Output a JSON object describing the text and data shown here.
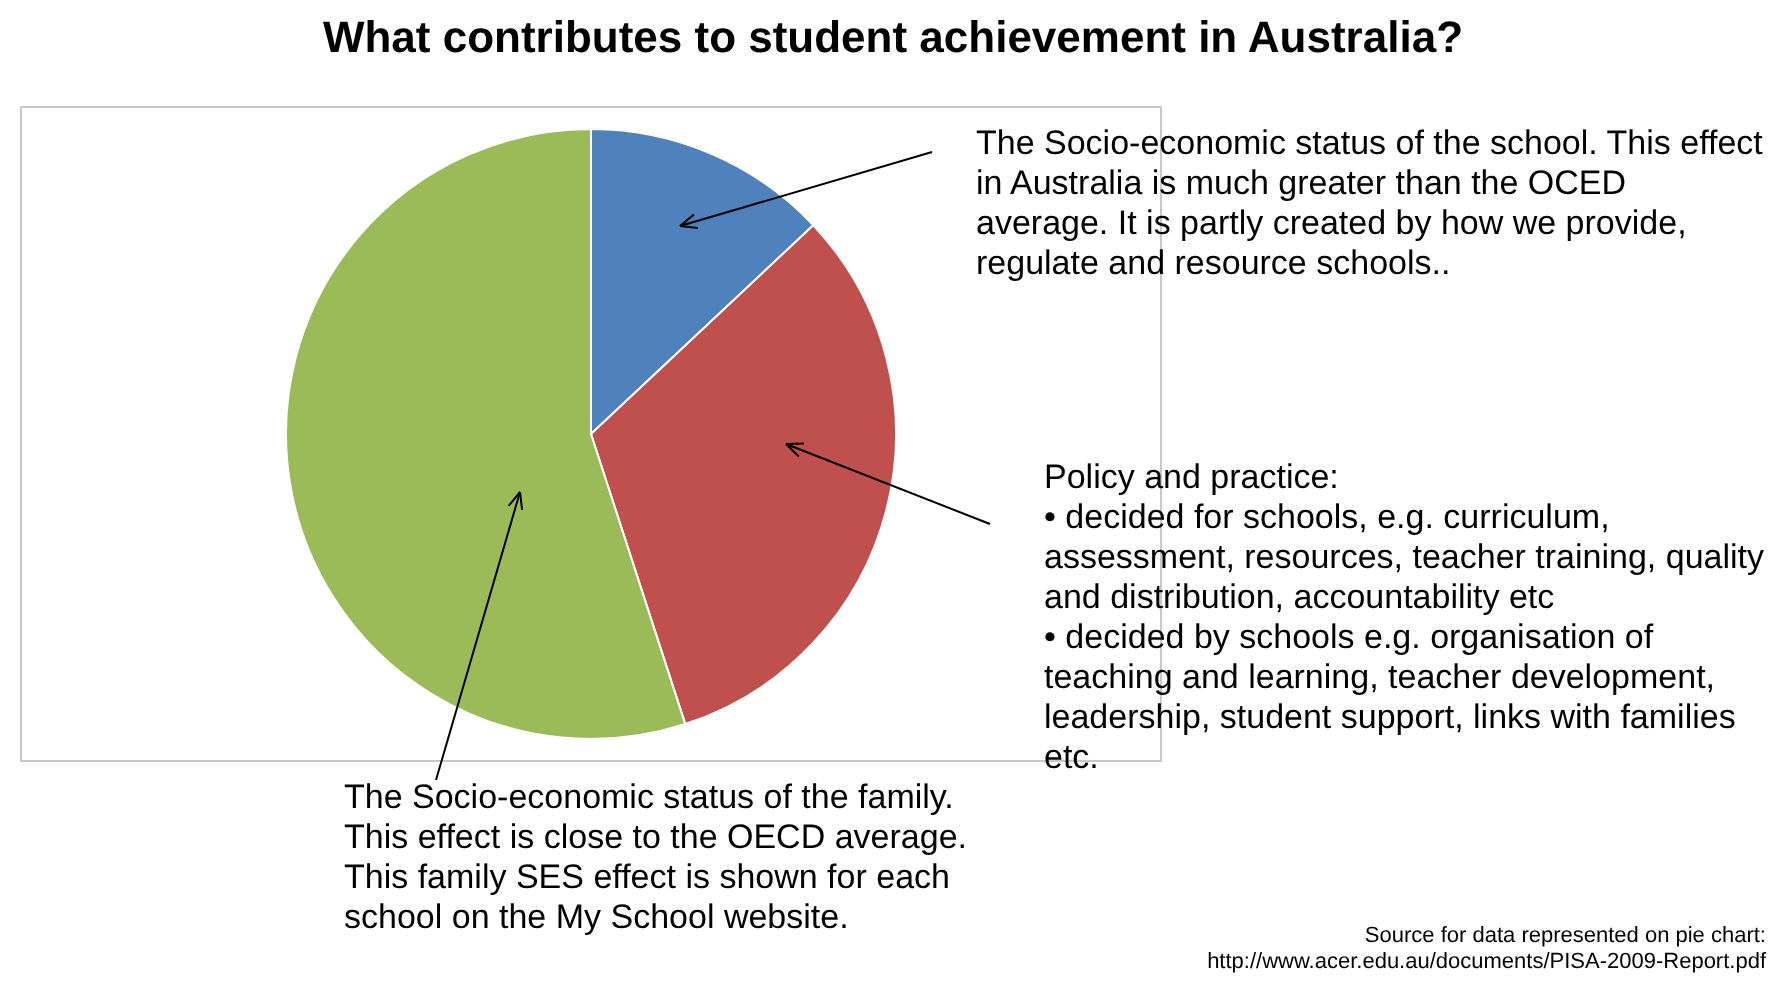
{
  "chart_data": {
    "type": "pie",
    "title": "What contributes to student achievement in Australia?",
    "categories": [
      null,
      null,
      null
    ],
    "values": [
      13,
      32,
      55
    ],
    "colors": [
      "#4f81bd",
      "#c0504d",
      "#9bbb59"
    ],
    "legend": false,
    "annotations": [
      "The Socio-economic status of the school. This effect in Australia is much greater than the OCED average. It is partly created by how we provide, regulate and resource schools..",
      "Policy and practice:\n•  decided for schools, e.g. curriculum, assessment, resources, teacher training, quality and distribution, accountability etc\n•  decided by schools e.g. organisation of teaching and learning, teacher development, leadership, student support, links with families etc.",
      "The Socio-economic status of the family. This effect is close to the OECD average. This family SES effect is shown for each school on the My School website.",
      "Source for data represented on pie chart:\nhttp://www.acer.edu.au/documents/PISA-2009-Report.pdf"
    ]
  }
}
